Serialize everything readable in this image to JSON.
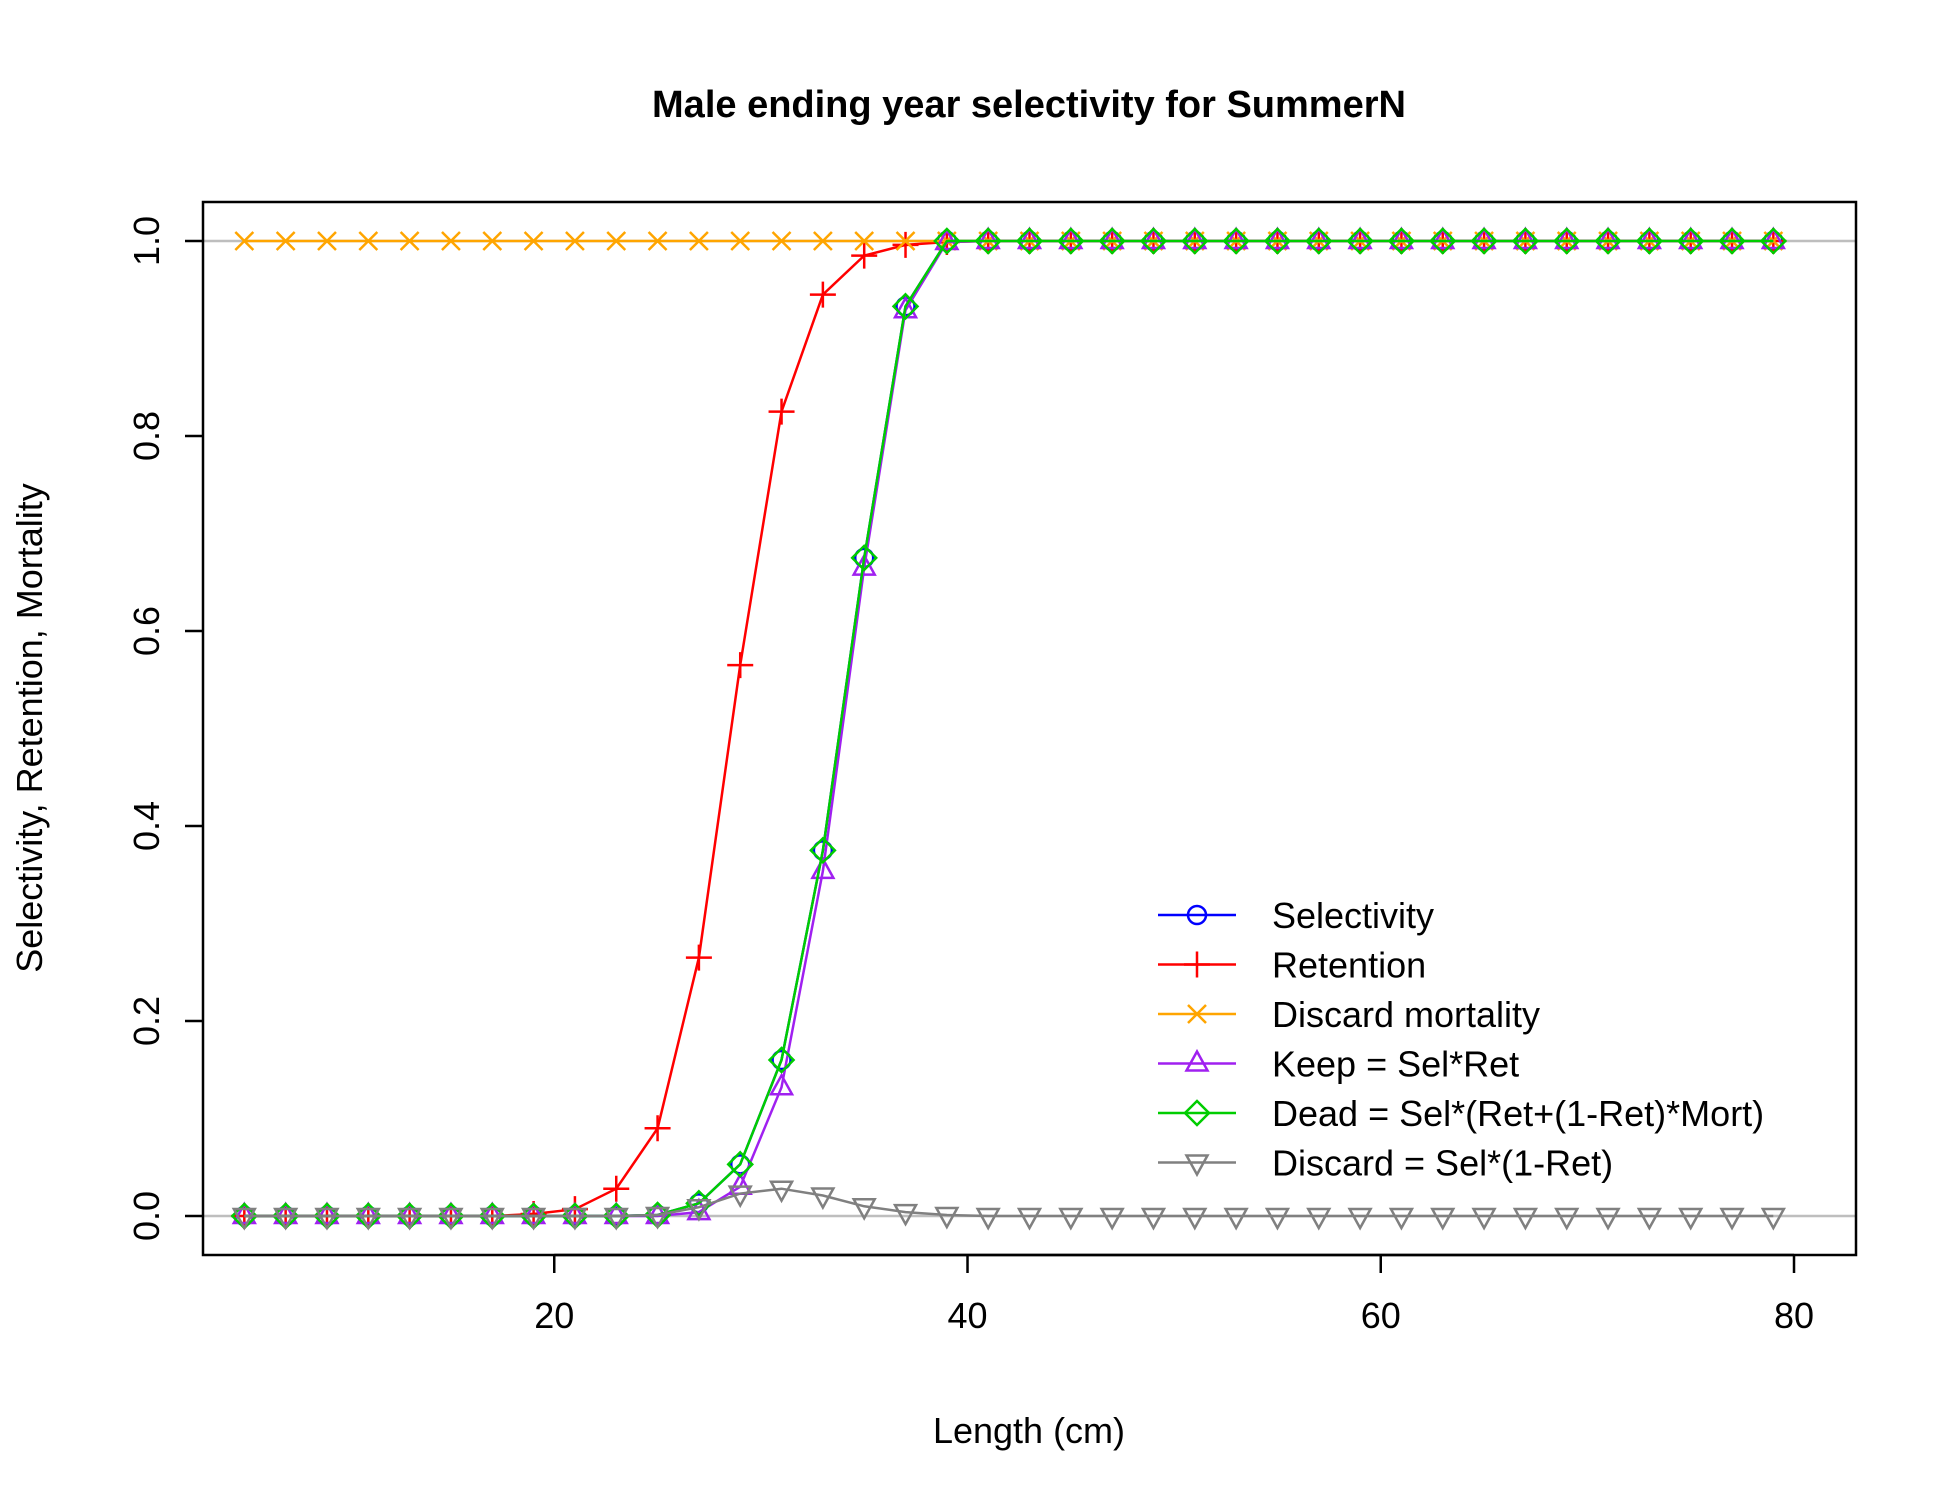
{
  "chart_data": {
    "type": "line",
    "title": "Male ending year selectivity for SummerN",
    "xlabel": "Length (cm)",
    "ylabel": "Selectivity, Retention, Mortality",
    "xlim": [
      3,
      83
    ],
    "ylim": [
      -0.04,
      1.04
    ],
    "x_ticks": [
      20,
      40,
      60,
      80
    ],
    "y_ticks": [
      0.0,
      0.2,
      0.4,
      0.6,
      0.8,
      1.0
    ],
    "x_tick_labels": [
      "20",
      "40",
      "60",
      "80"
    ],
    "y_tick_labels": [
      "0.0",
      "0.2",
      "0.4",
      "0.6",
      "0.8",
      "1.0"
    ],
    "reference_lines_y": [
      0,
      1
    ],
    "grid": false,
    "legend_position": "bottom-right",
    "x": [
      5,
      7,
      9,
      11,
      13,
      15,
      17,
      19,
      21,
      23,
      25,
      27,
      29,
      31,
      33,
      35,
      37,
      39,
      41,
      43,
      45,
      47,
      49,
      51,
      53,
      55,
      57,
      59,
      61,
      63,
      65,
      67,
      69,
      71,
      73,
      75,
      77,
      79
    ],
    "series": [
      {
        "name": "Selectivity",
        "color": "#0000ff",
        "marker": "circle",
        "values": [
          0,
          0,
          0,
          0,
          0,
          0,
          0,
          0,
          0,
          0,
          0.001,
          0.013,
          0.053,
          0.16,
          0.375,
          0.675,
          0.933,
          1,
          1,
          1,
          1,
          1,
          1,
          1,
          1,
          1,
          1,
          1,
          1,
          1,
          1,
          1,
          1,
          1,
          1,
          1,
          1,
          1
        ]
      },
      {
        "name": "Retention",
        "color": "#ff0000",
        "marker": "plus",
        "values": [
          0,
          0,
          0,
          0,
          0,
          0,
          0,
          0.002,
          0.007,
          0.028,
          0.09,
          0.265,
          0.565,
          0.825,
          0.945,
          0.985,
          0.996,
          0.999,
          1,
          1,
          1,
          1,
          1,
          1,
          1,
          1,
          1,
          1,
          1,
          1,
          1,
          1,
          1,
          1,
          1,
          1,
          1,
          1
        ]
      },
      {
        "name": "Discard mortality",
        "color": "#ffa500",
        "marker": "x",
        "values": [
          1,
          1,
          1,
          1,
          1,
          1,
          1,
          1,
          1,
          1,
          1,
          1,
          1,
          1,
          1,
          1,
          1,
          1,
          1,
          1,
          1,
          1,
          1,
          1,
          1,
          1,
          1,
          1,
          1,
          1,
          1,
          1,
          1,
          1,
          1,
          1,
          1,
          1
        ]
      },
      {
        "name": "Keep = Sel*Ret",
        "color": "#a020f0",
        "marker": "triangle-up",
        "values": [
          0,
          0,
          0,
          0,
          0,
          0,
          0,
          0,
          0,
          0,
          0,
          0.004,
          0.03,
          0.132,
          0.354,
          0.665,
          0.929,
          0.999,
          1,
          1,
          1,
          1,
          1,
          1,
          1,
          1,
          1,
          1,
          1,
          1,
          1,
          1,
          1,
          1,
          1,
          1,
          1,
          1
        ]
      },
      {
        "name": "Dead = Sel*(Ret+(1-Ret)*Mort)",
        "color": "#00cd00",
        "marker": "diamond",
        "values": [
          0,
          0,
          0,
          0,
          0,
          0,
          0,
          0,
          0,
          0,
          0.001,
          0.013,
          0.053,
          0.16,
          0.375,
          0.675,
          0.933,
          1,
          1,
          1,
          1,
          1,
          1,
          1,
          1,
          1,
          1,
          1,
          1,
          1,
          1,
          1,
          1,
          1,
          1,
          1,
          1,
          1
        ]
      },
      {
        "name": "Discard = Sel*(1-Ret)",
        "color": "#808080",
        "marker": "triangle-down",
        "values": [
          0,
          0,
          0,
          0,
          0,
          0,
          0,
          0,
          0,
          0,
          0.001,
          0.009,
          0.023,
          0.028,
          0.021,
          0.01,
          0.004,
          0.001,
          0,
          0,
          0,
          0,
          0,
          0,
          0,
          0,
          0,
          0,
          0,
          0,
          0,
          0,
          0,
          0,
          0,
          0,
          0,
          0
        ]
      }
    ]
  }
}
